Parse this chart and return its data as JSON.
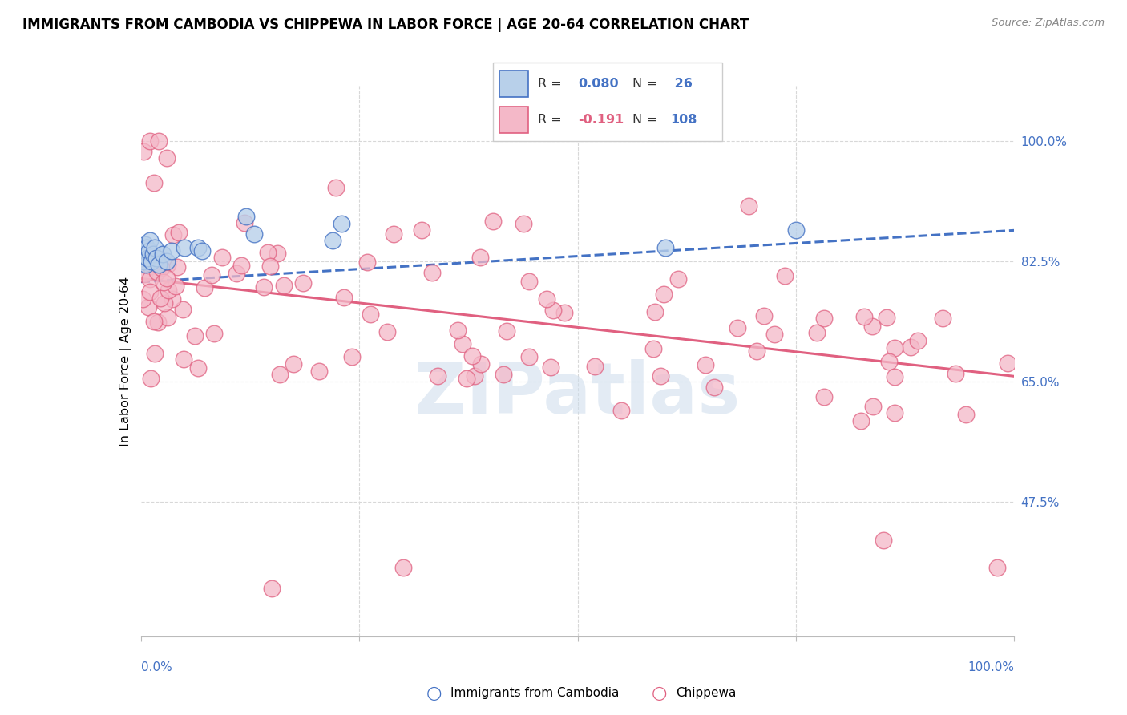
{
  "title": "IMMIGRANTS FROM CAMBODIA VS CHIPPEWA IN LABOR FORCE | AGE 20-64 CORRELATION CHART",
  "source": "Source: ZipAtlas.com",
  "ylabel": "In Labor Force | Age 20-64",
  "xlim": [
    0.0,
    1.0
  ],
  "ylim": [
    0.28,
    1.08
  ],
  "yticks": [
    0.475,
    0.65,
    0.825,
    1.0
  ],
  "ytick_labels": [
    "47.5%",
    "65.0%",
    "82.5%",
    "100.0%"
  ],
  "color_cambodia_fill": "#b8d0ea",
  "color_cambodia_edge": "#4472c4",
  "color_chippewa_fill": "#f4b8c8",
  "color_chippewa_edge": "#e06080",
  "color_cambodia_text": "#4472c4",
  "color_chippewa_text": "#e06080",
  "color_n_text": "#4472c4",
  "background": "#ffffff",
  "grid_color": "#d8d8d8",
  "watermark": "ZIPatlas",
  "cam_trend_start_y": 0.795,
  "cam_trend_end_y": 0.87,
  "chip_trend_start_y": 0.8,
  "chip_trend_end_y": 0.658
}
